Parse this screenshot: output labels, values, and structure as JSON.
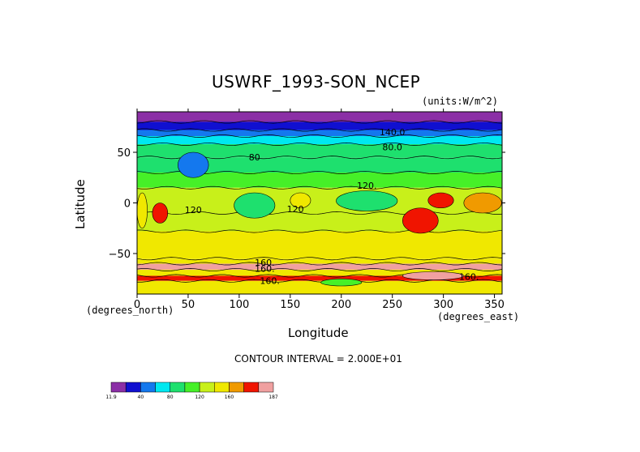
{
  "chart_data": {
    "type": "heatmap",
    "title": "USWRF_1993-SON_NCEP",
    "units_note": "(units:W/m^2)",
    "xlabel": "Longitude",
    "ylabel": "Latitude",
    "x_unit_label": "(degrees_east)",
    "y_unit_label": "(degrees_north)",
    "xlim": [
      0,
      357.5
    ],
    "ylim": [
      -90,
      90
    ],
    "x_ticks": [
      0,
      50,
      100,
      150,
      200,
      250,
      300,
      350
    ],
    "x_tick_labels": [
      "0",
      "50",
      "100",
      "150",
      "200",
      "250",
      "300",
      "350"
    ],
    "y_ticks": [
      50,
      0,
      -50
    ],
    "y_tick_labels": [
      "50",
      "0",
      "−50"
    ],
    "contour_interval_text": "CONTOUR INTERVAL = 2.000E+01",
    "contour_labels": [
      {
        "text": "140.0",
        "lon": 250,
        "lat": 67
      },
      {
        "text": "80.0",
        "lon": 250,
        "lat": 52
      },
      {
        "text": "80",
        "lon": 115,
        "lat": 42
      },
      {
        "text": "120.",
        "lon": 225,
        "lat": 14
      },
      {
        "text": "120",
        "lon": 55,
        "lat": -10
      },
      {
        "text": "120",
        "lon": 155,
        "lat": -9
      },
      {
        "text": "160.",
        "lon": 125,
        "lat": -62
      },
      {
        "text": "160.",
        "lon": 125,
        "lat": -68
      },
      {
        "text": "160.",
        "lon": 130,
        "lat": -80
      },
      {
        "text": "160.",
        "lon": 325,
        "lat": -76
      }
    ],
    "colorbar": {
      "colors": [
        "#8b2fa6",
        "#1010d0",
        "#1478ee",
        "#00e8f0",
        "#1ee06e",
        "#46f028",
        "#c8f01a",
        "#f0e800",
        "#f09a00",
        "#f01400",
        "#f0a0a0"
      ],
      "tick_labels": [
        "11.9",
        "40",
        "80",
        "120",
        "160",
        "187"
      ],
      "tick_values": [
        11.9,
        40,
        80,
        120,
        160,
        187
      ]
    },
    "zonal_bands": [
      {
        "lat_from": 90,
        "lat_to": 80,
        "value": 20
      },
      {
        "lat_from": 80,
        "lat_to": 72,
        "value": 35
      },
      {
        "lat_from": 72,
        "lat_to": 66,
        "value": 55
      },
      {
        "lat_from": 66,
        "lat_to": 58,
        "value": 70
      },
      {
        "lat_from": 58,
        "lat_to": 45,
        "value": 85
      },
      {
        "lat_from": 45,
        "lat_to": 30,
        "value": 100
      },
      {
        "lat_from": 30,
        "lat_to": 15,
        "value": 110
      },
      {
        "lat_from": 15,
        "lat_to": -10,
        "value": 125
      },
      {
        "lat_from": -10,
        "lat_to": -28,
        "value": 135
      },
      {
        "lat_from": -28,
        "lat_to": -55,
        "value": 150
      },
      {
        "lat_from": -55,
        "lat_to": -60,
        "value": 145
      },
      {
        "lat_from": -60,
        "lat_to": -66,
        "value": 180
      },
      {
        "lat_from": -66,
        "lat_to": -72,
        "value": 150
      },
      {
        "lat_from": -72,
        "lat_to": -77,
        "value": 170
      },
      {
        "lat_from": -77,
        "lat_to": -90,
        "value": 145
      }
    ],
    "regional_features": [
      {
        "lon_from": 195,
        "lon_to": 255,
        "lat_from": 12,
        "lat_to": -8,
        "value": 85
      },
      {
        "lon_from": 260,
        "lon_to": 295,
        "lat_from": -5,
        "lat_to": -30,
        "value": 170
      },
      {
        "lon_from": 285,
        "lon_to": 310,
        "lat_from": 10,
        "lat_to": -5,
        "value": 175
      },
      {
        "lon_from": 15,
        "lon_to": 30,
        "lat_from": 0,
        "lat_to": -20,
        "value": 170
      },
      {
        "lon_from": 40,
        "lon_to": 70,
        "lat_from": 50,
        "lat_to": 25,
        "value": 55
      },
      {
        "lon_from": 95,
        "lon_to": 135,
        "lat_from": 10,
        "lat_to": -15,
        "value": 90
      },
      {
        "lon_from": 150,
        "lon_to": 170,
        "lat_from": 10,
        "lat_to": -5,
        "value": 150
      },
      {
        "lon_from": 0,
        "lon_to": 10,
        "lat_from": 10,
        "lat_to": -25,
        "value": 150
      },
      {
        "lon_from": 320,
        "lon_to": 357,
        "lat_from": 10,
        "lat_to": -10,
        "value": 160
      },
      {
        "lon_from": 180,
        "lon_to": 220,
        "lat_from": -75,
        "lat_to": -82,
        "value": 120
      },
      {
        "lon_from": 260,
        "lon_to": 320,
        "lat_from": -68,
        "lat_to": -76,
        "value": 185
      }
    ]
  }
}
